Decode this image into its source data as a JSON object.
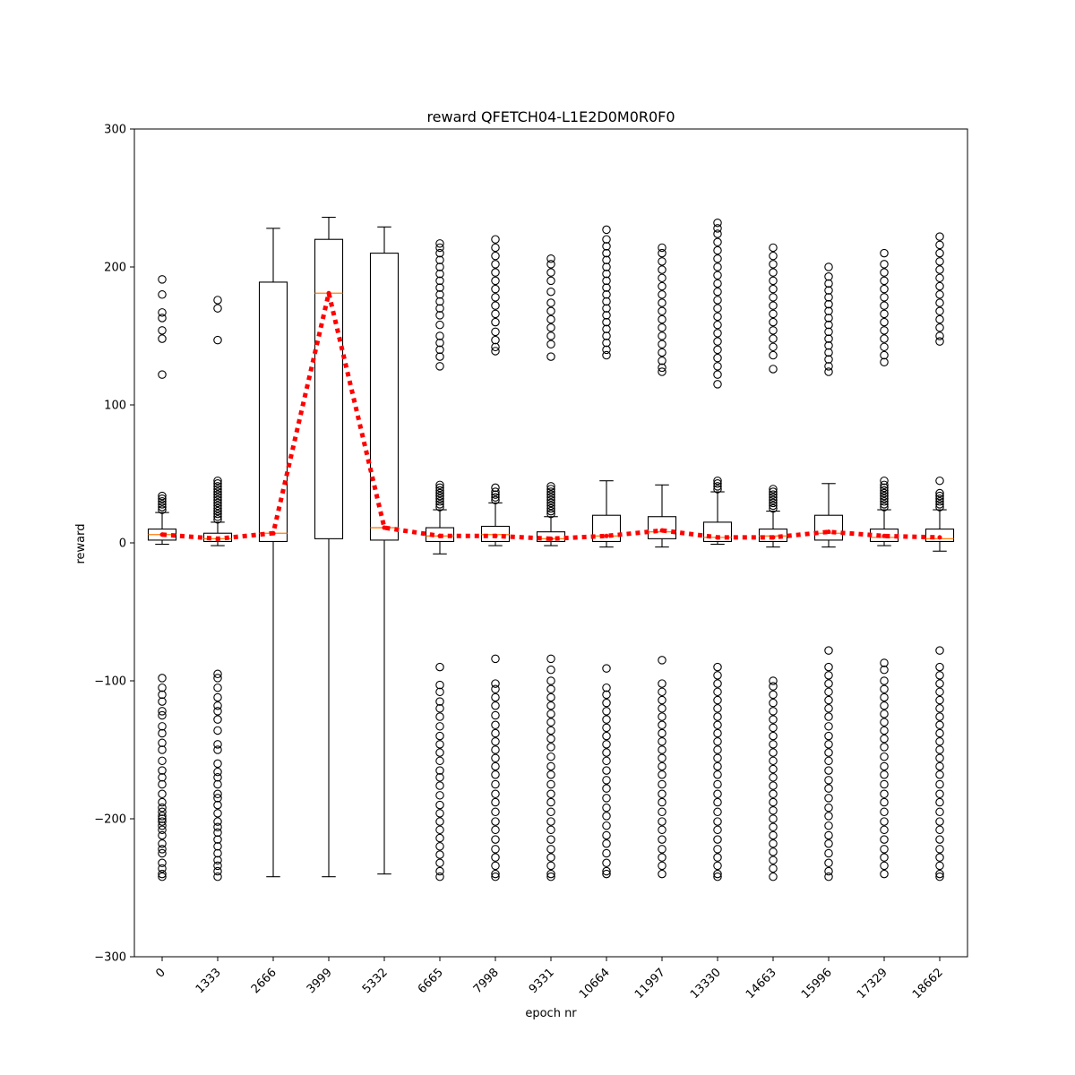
{
  "chart_data": {
    "type": "box",
    "title": "reward QFETCH04-L1E2D0M0R0F0",
    "xlabel": "epoch nr",
    "ylabel": "reward",
    "ylim": [
      -300,
      300
    ],
    "yticks": [
      -300,
      -200,
      -100,
      0,
      100,
      200,
      300
    ],
    "ytick_labels": [
      "−300",
      "−200",
      "−100",
      "0",
      "100",
      "200",
      "300"
    ],
    "categories": [
      "0",
      "1333",
      "2666",
      "3999",
      "5332",
      "6665",
      "7998",
      "9331",
      "10664",
      "11997",
      "13330",
      "14663",
      "15996",
      "17329",
      "18662"
    ],
    "box_color": "#000000",
    "median_color": "#ff7f0e",
    "mean_line_color": "#ff0000",
    "boxes": [
      {
        "epoch": "0",
        "whislo": -1,
        "q1": 2,
        "med": 6,
        "q3": 10,
        "whishi": 22,
        "mean": 6,
        "fliers_high": [
          24,
          26,
          28,
          30,
          32,
          34,
          122,
          148,
          154,
          163,
          167,
          180,
          191
        ],
        "fliers_low": [
          -98,
          -105,
          -110,
          -115,
          -122,
          -125,
          -133,
          -138,
          -145,
          -150,
          -158,
          -165,
          -170,
          -175,
          -182,
          -188,
          -192,
          -195,
          -198,
          -200,
          -202,
          -205,
          -208,
          -212,
          -218,
          -222,
          -225,
          -232,
          -236,
          -240,
          -242
        ]
      },
      {
        "epoch": "1333",
        "whislo": -2,
        "q1": 1,
        "med": 3,
        "q3": 7,
        "whishi": 15,
        "mean": 3,
        "fliers_high": [
          17,
          19,
          21,
          23,
          25,
          27,
          29,
          31,
          33,
          35,
          37,
          39,
          41,
          43,
          45,
          147,
          170,
          176
        ],
        "fliers_low": [
          -95,
          -98,
          -105,
          -112,
          -118,
          -122,
          -128,
          -136,
          -146,
          -150,
          -160,
          -166,
          -170,
          -175,
          -182,
          -185,
          -190,
          -196,
          -202,
          -206,
          -210,
          -215,
          -220,
          -225,
          -230,
          -234,
          -238,
          -242
        ]
      },
      {
        "epoch": "2666",
        "whislo": -242,
        "q1": 1,
        "med": 7,
        "q3": 189,
        "whishi": 228,
        "mean": 7,
        "fliers_high": [],
        "fliers_low": []
      },
      {
        "epoch": "3999",
        "whislo": -242,
        "q1": 3,
        "med": 181,
        "q3": 220,
        "whishi": 236,
        "mean": 181,
        "fliers_high": [],
        "fliers_low": []
      },
      {
        "epoch": "5332",
        "whislo": -240,
        "q1": 2,
        "med": 11,
        "q3": 210,
        "whishi": 229,
        "mean": 11,
        "fliers_high": [],
        "fliers_low": []
      },
      {
        "epoch": "6665",
        "whislo": -8,
        "q1": 1,
        "med": 5,
        "q3": 11,
        "whishi": 24,
        "mean": 5,
        "fliers_high": [
          26,
          28,
          30,
          32,
          34,
          36,
          38,
          40,
          42,
          128,
          135,
          140,
          145,
          150,
          158,
          165,
          170,
          175,
          180,
          185,
          190,
          195,
          200,
          205,
          210,
          214,
          217
        ],
        "fliers_low": [
          -90,
          -103,
          -108,
          -115,
          -120,
          -126,
          -133,
          -140,
          -146,
          -152,
          -158,
          -165,
          -170,
          -176,
          -183,
          -190,
          -196,
          -202,
          -208,
          -214,
          -220,
          -226,
          -232,
          -238,
          -242
        ]
      },
      {
        "epoch": "7998",
        "whislo": -2,
        "q1": 1,
        "med": 6,
        "q3": 12,
        "whishi": 29,
        "mean": 5,
        "fliers_high": [
          31,
          33,
          35,
          37,
          40,
          139,
          142,
          147,
          153,
          160,
          166,
          172,
          178,
          184,
          190,
          196,
          202,
          208,
          214,
          220
        ],
        "fliers_low": [
          -84,
          -102,
          -106,
          -112,
          -118,
          -125,
          -132,
          -138,
          -144,
          -150,
          -156,
          -162,
          -168,
          -175,
          -182,
          -188,
          -195,
          -202,
          -208,
          -215,
          -222,
          -228,
          -234,
          -240,
          -242
        ]
      },
      {
        "epoch": "9331",
        "whislo": -2,
        "q1": 1,
        "med": 3,
        "q3": 8,
        "whishi": 19,
        "mean": 3,
        "fliers_high": [
          21,
          23,
          25,
          27,
          29,
          31,
          33,
          35,
          37,
          39,
          41,
          135,
          144,
          150,
          156,
          162,
          168,
          174,
          182,
          190,
          196,
          202,
          206
        ],
        "fliers_low": [
          -84,
          -92,
          -100,
          -106,
          -112,
          -118,
          -124,
          -130,
          -136,
          -142,
          -148,
          -155,
          -162,
          -168,
          -175,
          -182,
          -188,
          -195,
          -202,
          -208,
          -215,
          -222,
          -228,
          -234,
          -240,
          -242
        ]
      },
      {
        "epoch": "10664",
        "whislo": -3,
        "q1": 1,
        "med": 5,
        "q3": 20,
        "whishi": 45,
        "mean": 5,
        "fliers_high": [
          136,
          140,
          145,
          150,
          155,
          160,
          165,
          170,
          175,
          180,
          185,
          190,
          195,
          200,
          205,
          210,
          215,
          220,
          227
        ],
        "fliers_low": [
          -91,
          -105,
          -110,
          -116,
          -122,
          -128,
          -134,
          -140,
          -146,
          -152,
          -158,
          -165,
          -172,
          -178,
          -185,
          -192,
          -198,
          -205,
          -212,
          -218,
          -225,
          -232,
          -238,
          -240
        ]
      },
      {
        "epoch": "11997",
        "whislo": -3,
        "q1": 3,
        "med": 8,
        "q3": 19,
        "whishi": 42,
        "mean": 9,
        "fliers_high": [
          124,
          127,
          132,
          138,
          144,
          150,
          156,
          162,
          168,
          174,
          180,
          186,
          192,
          198,
          204,
          210,
          214
        ],
        "fliers_low": [
          -85,
          -102,
          -108,
          -114,
          -120,
          -126,
          -132,
          -138,
          -144,
          -150,
          -156,
          -162,
          -168,
          -175,
          -182,
          -188,
          -195,
          -202,
          -208,
          -215,
          -222,
          -228,
          -234,
          -240
        ]
      },
      {
        "epoch": "13330",
        "whislo": -1,
        "q1": 1,
        "med": 4,
        "q3": 15,
        "whishi": 37,
        "mean": 4,
        "fliers_high": [
          39,
          41,
          43,
          45,
          115,
          122,
          128,
          134,
          140,
          146,
          152,
          158,
          164,
          170,
          176,
          182,
          188,
          194,
          200,
          206,
          212,
          218,
          224,
          228,
          232
        ],
        "fliers_low": [
          -90,
          -96,
          -102,
          -108,
          -114,
          -120,
          -126,
          -132,
          -138,
          -144,
          -150,
          -156,
          -162,
          -168,
          -175,
          -182,
          -188,
          -195,
          -202,
          -208,
          -215,
          -222,
          -228,
          -234,
          -240,
          -242
        ]
      },
      {
        "epoch": "14663",
        "whislo": -3,
        "q1": 1,
        "med": 5,
        "q3": 10,
        "whishi": 23,
        "mean": 4,
        "fliers_high": [
          25,
          27,
          29,
          31,
          33,
          35,
          37,
          39,
          126,
          136,
          142,
          148,
          154,
          160,
          166,
          172,
          178,
          184,
          190,
          196,
          202,
          208,
          214
        ],
        "fliers_low": [
          -100,
          -104,
          -110,
          -116,
          -122,
          -128,
          -134,
          -140,
          -146,
          -152,
          -158,
          -164,
          -170,
          -176,
          -182,
          -188,
          -194,
          -200,
          -206,
          -212,
          -218,
          -224,
          -230,
          -236,
          -242
        ]
      },
      {
        "epoch": "15996",
        "whislo": -3,
        "q1": 2,
        "med": 7,
        "q3": 20,
        "whishi": 43,
        "mean": 8,
        "fliers_high": [
          124,
          128,
          133,
          138,
          143,
          148,
          153,
          158,
          163,
          168,
          173,
          178,
          183,
          188,
          193,
          200
        ],
        "fliers_low": [
          -78,
          -90,
          -96,
          -102,
          -108,
          -114,
          -120,
          -126,
          -133,
          -140,
          -146,
          -152,
          -158,
          -165,
          -172,
          -178,
          -185,
          -192,
          -198,
          -205,
          -212,
          -218,
          -225,
          -232,
          -238,
          -242
        ]
      },
      {
        "epoch": "17329",
        "whislo": -2,
        "q1": 1,
        "med": 4,
        "q3": 10,
        "whishi": 24,
        "mean": 5,
        "fliers_high": [
          26,
          28,
          30,
          32,
          34,
          36,
          38,
          40,
          42,
          45,
          131,
          136,
          142,
          148,
          154,
          160,
          166,
          172,
          178,
          184,
          190,
          196,
          202,
          210
        ],
        "fliers_low": [
          -87,
          -92,
          -100,
          -106,
          -112,
          -118,
          -124,
          -130,
          -136,
          -142,
          -148,
          -155,
          -162,
          -168,
          -175,
          -182,
          -188,
          -195,
          -202,
          -208,
          -215,
          -222,
          -228,
          -234,
          -240
        ]
      },
      {
        "epoch": "18662",
        "whislo": -6,
        "q1": 1,
        "med": 3,
        "q3": 10,
        "whishi": 24,
        "mean": 4,
        "fliers_high": [
          26,
          28,
          30,
          32,
          34,
          36,
          45,
          146,
          150,
          156,
          162,
          168,
          174,
          180,
          186,
          192,
          198,
          204,
          210,
          216,
          222
        ],
        "fliers_low": [
          -78,
          -90,
          -96,
          -102,
          -108,
          -114,
          -120,
          -126,
          -132,
          -138,
          -144,
          -150,
          -156,
          -162,
          -168,
          -175,
          -182,
          -188,
          -195,
          -202,
          -208,
          -215,
          -222,
          -228,
          -234,
          -240,
          -242
        ]
      }
    ]
  }
}
